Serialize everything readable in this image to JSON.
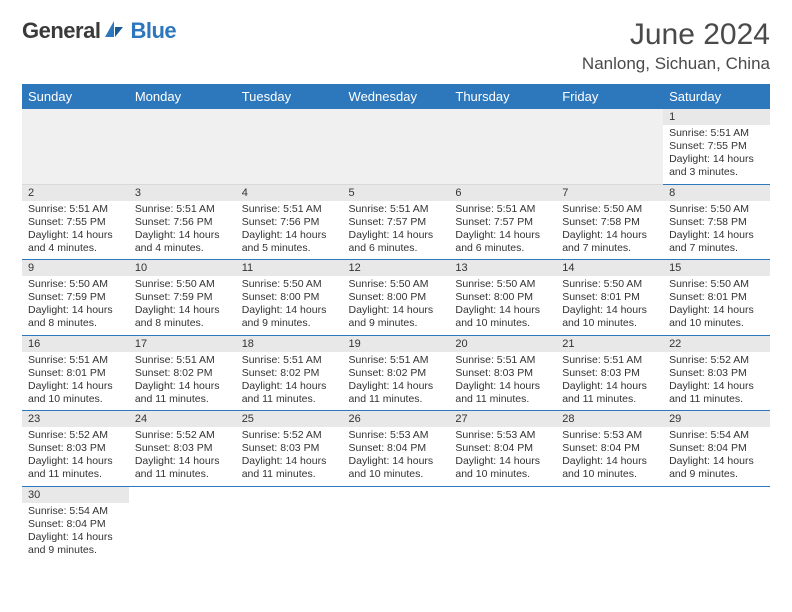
{
  "header": {
    "logo1": "General",
    "logo2": "Blue",
    "title": "June 2024",
    "location": "Nanlong, Sichuan, China"
  },
  "colors": {
    "brand": "#2d78bd",
    "header_bg": "#2d78bd",
    "header_text": "#ffffff",
    "daynum_bg": "#e8e8e8",
    "border": "#2d78bd",
    "text": "#333333"
  },
  "dayNames": [
    "Sunday",
    "Monday",
    "Tuesday",
    "Wednesday",
    "Thursday",
    "Friday",
    "Saturday"
  ],
  "weeks": [
    [
      null,
      null,
      null,
      null,
      null,
      null,
      {
        "n": "1",
        "sr": "Sunrise: 5:51 AM",
        "ss": "Sunset: 7:55 PM",
        "dl": "Daylight: 14 hours and 3 minutes."
      }
    ],
    [
      {
        "n": "2",
        "sr": "Sunrise: 5:51 AM",
        "ss": "Sunset: 7:55 PM",
        "dl": "Daylight: 14 hours and 4 minutes."
      },
      {
        "n": "3",
        "sr": "Sunrise: 5:51 AM",
        "ss": "Sunset: 7:56 PM",
        "dl": "Daylight: 14 hours and 4 minutes."
      },
      {
        "n": "4",
        "sr": "Sunrise: 5:51 AM",
        "ss": "Sunset: 7:56 PM",
        "dl": "Daylight: 14 hours and 5 minutes."
      },
      {
        "n": "5",
        "sr": "Sunrise: 5:51 AM",
        "ss": "Sunset: 7:57 PM",
        "dl": "Daylight: 14 hours and 6 minutes."
      },
      {
        "n": "6",
        "sr": "Sunrise: 5:51 AM",
        "ss": "Sunset: 7:57 PM",
        "dl": "Daylight: 14 hours and 6 minutes."
      },
      {
        "n": "7",
        "sr": "Sunrise: 5:50 AM",
        "ss": "Sunset: 7:58 PM",
        "dl": "Daylight: 14 hours and 7 minutes."
      },
      {
        "n": "8",
        "sr": "Sunrise: 5:50 AM",
        "ss": "Sunset: 7:58 PM",
        "dl": "Daylight: 14 hours and 7 minutes."
      }
    ],
    [
      {
        "n": "9",
        "sr": "Sunrise: 5:50 AM",
        "ss": "Sunset: 7:59 PM",
        "dl": "Daylight: 14 hours and 8 minutes."
      },
      {
        "n": "10",
        "sr": "Sunrise: 5:50 AM",
        "ss": "Sunset: 7:59 PM",
        "dl": "Daylight: 14 hours and 8 minutes."
      },
      {
        "n": "11",
        "sr": "Sunrise: 5:50 AM",
        "ss": "Sunset: 8:00 PM",
        "dl": "Daylight: 14 hours and 9 minutes."
      },
      {
        "n": "12",
        "sr": "Sunrise: 5:50 AM",
        "ss": "Sunset: 8:00 PM",
        "dl": "Daylight: 14 hours and 9 minutes."
      },
      {
        "n": "13",
        "sr": "Sunrise: 5:50 AM",
        "ss": "Sunset: 8:00 PM",
        "dl": "Daylight: 14 hours and 10 minutes."
      },
      {
        "n": "14",
        "sr": "Sunrise: 5:50 AM",
        "ss": "Sunset: 8:01 PM",
        "dl": "Daylight: 14 hours and 10 minutes."
      },
      {
        "n": "15",
        "sr": "Sunrise: 5:50 AM",
        "ss": "Sunset: 8:01 PM",
        "dl": "Daylight: 14 hours and 10 minutes."
      }
    ],
    [
      {
        "n": "16",
        "sr": "Sunrise: 5:51 AM",
        "ss": "Sunset: 8:01 PM",
        "dl": "Daylight: 14 hours and 10 minutes."
      },
      {
        "n": "17",
        "sr": "Sunrise: 5:51 AM",
        "ss": "Sunset: 8:02 PM",
        "dl": "Daylight: 14 hours and 11 minutes."
      },
      {
        "n": "18",
        "sr": "Sunrise: 5:51 AM",
        "ss": "Sunset: 8:02 PM",
        "dl": "Daylight: 14 hours and 11 minutes."
      },
      {
        "n": "19",
        "sr": "Sunrise: 5:51 AM",
        "ss": "Sunset: 8:02 PM",
        "dl": "Daylight: 14 hours and 11 minutes."
      },
      {
        "n": "20",
        "sr": "Sunrise: 5:51 AM",
        "ss": "Sunset: 8:03 PM",
        "dl": "Daylight: 14 hours and 11 minutes."
      },
      {
        "n": "21",
        "sr": "Sunrise: 5:51 AM",
        "ss": "Sunset: 8:03 PM",
        "dl": "Daylight: 14 hours and 11 minutes."
      },
      {
        "n": "22",
        "sr": "Sunrise: 5:52 AM",
        "ss": "Sunset: 8:03 PM",
        "dl": "Daylight: 14 hours and 11 minutes."
      }
    ],
    [
      {
        "n": "23",
        "sr": "Sunrise: 5:52 AM",
        "ss": "Sunset: 8:03 PM",
        "dl": "Daylight: 14 hours and 11 minutes."
      },
      {
        "n": "24",
        "sr": "Sunrise: 5:52 AM",
        "ss": "Sunset: 8:03 PM",
        "dl": "Daylight: 14 hours and 11 minutes."
      },
      {
        "n": "25",
        "sr": "Sunrise: 5:52 AM",
        "ss": "Sunset: 8:03 PM",
        "dl": "Daylight: 14 hours and 11 minutes."
      },
      {
        "n": "26",
        "sr": "Sunrise: 5:53 AM",
        "ss": "Sunset: 8:04 PM",
        "dl": "Daylight: 14 hours and 10 minutes."
      },
      {
        "n": "27",
        "sr": "Sunrise: 5:53 AM",
        "ss": "Sunset: 8:04 PM",
        "dl": "Daylight: 14 hours and 10 minutes."
      },
      {
        "n": "28",
        "sr": "Sunrise: 5:53 AM",
        "ss": "Sunset: 8:04 PM",
        "dl": "Daylight: 14 hours and 10 minutes."
      },
      {
        "n": "29",
        "sr": "Sunrise: 5:54 AM",
        "ss": "Sunset: 8:04 PM",
        "dl": "Daylight: 14 hours and 9 minutes."
      }
    ],
    [
      {
        "n": "30",
        "sr": "Sunrise: 5:54 AM",
        "ss": "Sunset: 8:04 PM",
        "dl": "Daylight: 14 hours and 9 minutes."
      },
      null,
      null,
      null,
      null,
      null,
      null
    ]
  ]
}
